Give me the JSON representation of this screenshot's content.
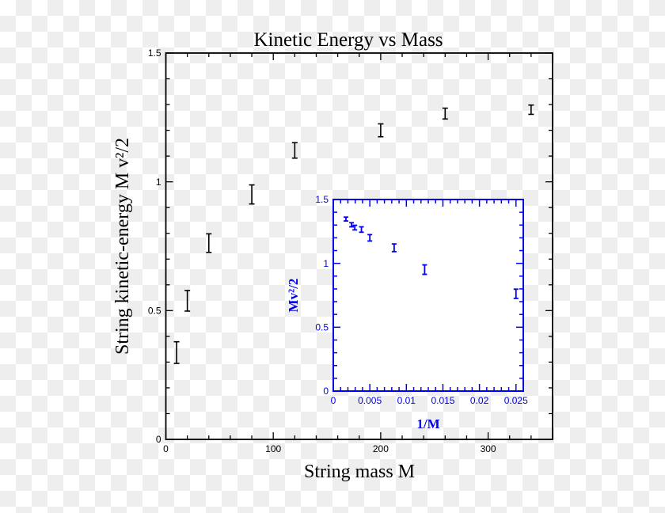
{
  "chart_data": [
    {
      "type": "scatter",
      "title": "Kinetic Energy vs Mass",
      "xlabel": "String mass M",
      "ylabel": "String kinetic-energy M v²/2",
      "xlim": [
        0,
        360
      ],
      "ylim": [
        0,
        1.5
      ],
      "xticks": [
        0,
        100,
        200,
        300
      ],
      "yticks": [
        0,
        0.5,
        1,
        1.5
      ],
      "ytick_labels": [
        "0",
        "0.5",
        "1",
        "1.5"
      ],
      "grid": false,
      "color": "#000000",
      "error_bars": true,
      "points": [
        {
          "x": 10,
          "y": 0.337,
          "err": 0.042
        },
        {
          "x": 20,
          "y": 0.538,
          "err": 0.04
        },
        {
          "x": 40,
          "y": 0.762,
          "err": 0.036
        },
        {
          "x": 80,
          "y": 0.951,
          "err": 0.037
        },
        {
          "x": 120,
          "y": 1.122,
          "err": 0.03
        },
        {
          "x": 200,
          "y": 1.2,
          "err": 0.025
        },
        {
          "x": 260,
          "y": 1.265,
          "err": 0.021
        },
        {
          "x": 340,
          "y": 1.28,
          "err": 0.018
        }
      ]
    },
    {
      "type": "scatter",
      "title": "",
      "xlabel": "1/M",
      "ylabel": "Mv²/2",
      "xlim": [
        0,
        0.026
      ],
      "ylim": [
        0,
        1.5
      ],
      "xticks": [
        0,
        0.005,
        0.01,
        0.015,
        0.02,
        0.025
      ],
      "xtick_labels": [
        "0",
        "0.005",
        "0.01",
        "0.015",
        "0.02",
        "0.025"
      ],
      "yticks": [
        0,
        0.5,
        1,
        1.5
      ],
      "ytick_labels": [
        "0",
        "0.5",
        "1",
        "1.5"
      ],
      "grid": false,
      "placement": "inset lower-right",
      "color": "#0000ee",
      "error_bars": true,
      "points": [
        {
          "x": 0.00173,
          "y": 1.347,
          "err": 0.015
        },
        {
          "x": 0.0025,
          "y": 1.302,
          "err": 0.016
        },
        {
          "x": 0.00294,
          "y": 1.28,
          "err": 0.018
        },
        {
          "x": 0.00385,
          "y": 1.265,
          "err": 0.021
        },
        {
          "x": 0.005,
          "y": 1.2,
          "err": 0.025
        },
        {
          "x": 0.00833,
          "y": 1.122,
          "err": 0.03
        },
        {
          "x": 0.0125,
          "y": 0.951,
          "err": 0.037
        },
        {
          "x": 0.025,
          "y": 0.762,
          "err": 0.036
        }
      ]
    }
  ]
}
